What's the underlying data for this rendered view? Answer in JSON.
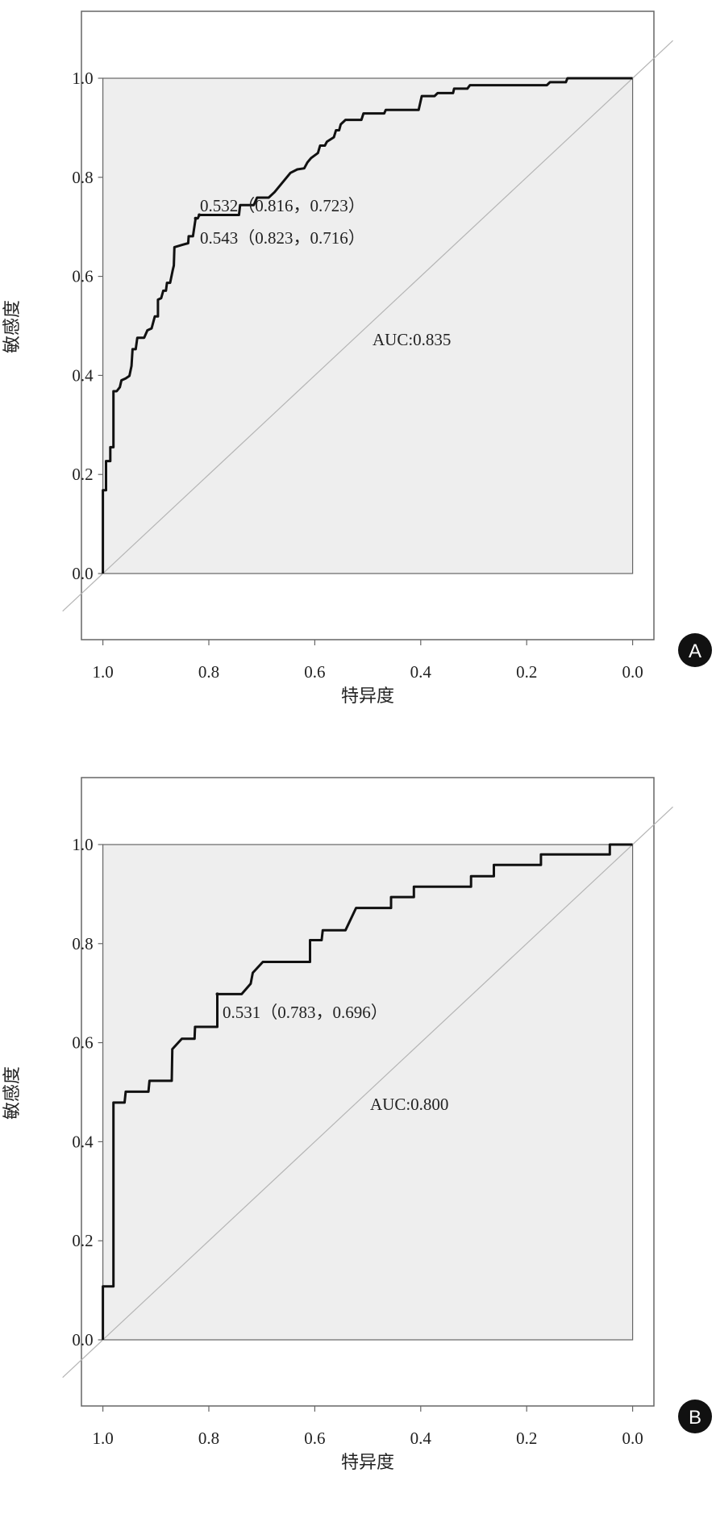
{
  "chart_data": [
    {
      "type": "line",
      "panel_label": "A",
      "xlabel": "特异度",
      "ylabel": "敏感度",
      "xlim": [
        1.0,
        0.0
      ],
      "ylim": [
        0.0,
        1.0
      ],
      "xticks": [
        "1.0",
        "0.8",
        "0.6",
        "0.4",
        "0.2",
        "0.0"
      ],
      "yticks": [
        "0.0",
        "0.2",
        "0.4",
        "0.6",
        "0.8",
        "1.0"
      ],
      "xtick_values": [
        1.0,
        0.8,
        0.6,
        0.4,
        0.2,
        0.0
      ],
      "ytick_values": [
        0.0,
        0.2,
        0.4,
        0.6,
        0.8,
        1.0
      ],
      "reference_line": "diagonal",
      "auc_label": "AUC:0.835",
      "annotations": [
        {
          "text": "0.532（0.816，0.723）",
          "spec": 0.818,
          "sens": 0.724
        },
        {
          "text": "0.543（0.823，0.716）",
          "spec": 0.825,
          "sens": 0.717
        }
      ],
      "series": [
        {
          "name": "ROC",
          "points": [
            [
              1,
              0
            ],
            [
              1,
              0.168
            ],
            [
              0.994,
              0.168
            ],
            [
              0.994,
              0.227
            ],
            [
              0.986,
              0.227
            ],
            [
              0.986,
              0.255
            ],
            [
              0.98,
              0.255
            ],
            [
              0.98,
              0.368
            ],
            [
              0.974,
              0.368
            ],
            [
              0.968,
              0.376
            ],
            [
              0.965,
              0.39
            ],
            [
              0.957,
              0.394
            ],
            [
              0.95,
              0.399
            ],
            [
              0.946,
              0.419
            ],
            [
              0.944,
              0.453
            ],
            [
              0.938,
              0.453
            ],
            [
              0.935,
              0.476
            ],
            [
              0.922,
              0.476
            ],
            [
              0.916,
              0.491
            ],
            [
              0.908,
              0.495
            ],
            [
              0.902,
              0.519
            ],
            [
              0.896,
              0.519
            ],
            [
              0.896,
              0.553
            ],
            [
              0.89,
              0.556
            ],
            [
              0.886,
              0.571
            ],
            [
              0.881,
              0.571
            ],
            [
              0.879,
              0.587
            ],
            [
              0.873,
              0.587
            ],
            [
              0.868,
              0.613
            ],
            [
              0.866,
              0.622
            ],
            [
              0.865,
              0.659
            ],
            [
              0.849,
              0.664
            ],
            [
              0.839,
              0.667
            ],
            [
              0.838,
              0.681
            ],
            [
              0.83,
              0.681
            ],
            [
              0.825,
              0.717
            ],
            [
              0.821,
              0.717
            ],
            [
              0.818,
              0.724
            ],
            [
              0.743,
              0.724
            ],
            [
              0.741,
              0.744
            ],
            [
              0.715,
              0.744
            ],
            [
              0.709,
              0.759
            ],
            [
              0.687,
              0.759
            ],
            [
              0.676,
              0.77
            ],
            [
              0.646,
              0.809
            ],
            [
              0.633,
              0.816
            ],
            [
              0.62,
              0.818
            ],
            [
              0.614,
              0.83
            ],
            [
              0.607,
              0.839
            ],
            [
              0.594,
              0.849
            ],
            [
              0.59,
              0.864
            ],
            [
              0.581,
              0.864
            ],
            [
              0.577,
              0.872
            ],
            [
              0.564,
              0.881
            ],
            [
              0.56,
              0.895
            ],
            [
              0.554,
              0.895
            ],
            [
              0.551,
              0.907
            ],
            [
              0.542,
              0.916
            ],
            [
              0.512,
              0.916
            ],
            [
              0.508,
              0.929
            ],
            [
              0.469,
              0.929
            ],
            [
              0.466,
              0.936
            ],
            [
              0.404,
              0.936
            ],
            [
              0.398,
              0.964
            ],
            [
              0.374,
              0.964
            ],
            [
              0.368,
              0.97
            ],
            [
              0.339,
              0.97
            ],
            [
              0.337,
              0.979
            ],
            [
              0.312,
              0.979
            ],
            [
              0.307,
              0.986
            ],
            [
              0.162,
              0.986
            ],
            [
              0.156,
              0.992
            ],
            [
              0.126,
              0.992
            ],
            [
              0.123,
              1
            ],
            [
              0,
              1
            ]
          ]
        }
      ]
    },
    {
      "type": "line",
      "panel_label": "B",
      "xlabel": "特异度",
      "ylabel": "敏感度",
      "xlim": [
        1.0,
        0.0
      ],
      "ylim": [
        0.0,
        1.0
      ],
      "xticks": [
        "1.0",
        "0.8",
        "0.6",
        "0.4",
        "0.2",
        "0.0"
      ],
      "yticks": [
        "0.0",
        "0.2",
        "0.4",
        "0.6",
        "0.8",
        "1.0"
      ],
      "xtick_values": [
        1.0,
        0.8,
        0.6,
        0.4,
        0.2,
        0.0
      ],
      "ytick_values": [
        0.0,
        0.2,
        0.4,
        0.6,
        0.8,
        1.0
      ],
      "reference_line": "diagonal",
      "auc_label": "AUC:0.800",
      "annotations": [
        {
          "text": "0.531（0.783，0.696）",
          "spec": 0.784,
          "sens": 0.698
        }
      ],
      "series": [
        {
          "name": "ROC",
          "points": [
            [
              1,
              0
            ],
            [
              1,
              0.108
            ],
            [
              0.98,
              0.108
            ],
            [
              0.98,
              0.479
            ],
            [
              0.959,
              0.479
            ],
            [
              0.957,
              0.501
            ],
            [
              0.914,
              0.501
            ],
            [
              0.912,
              0.523
            ],
            [
              0.87,
              0.523
            ],
            [
              0.869,
              0.587
            ],
            [
              0.851,
              0.608
            ],
            [
              0.827,
              0.608
            ],
            [
              0.826,
              0.632
            ],
            [
              0.784,
              0.632
            ],
            [
              0.784,
              0.698
            ],
            [
              0.738,
              0.698
            ],
            [
              0.721,
              0.719
            ],
            [
              0.717,
              0.741
            ],
            [
              0.698,
              0.763
            ],
            [
              0.609,
              0.763
            ],
            [
              0.609,
              0.807
            ],
            [
              0.587,
              0.807
            ],
            [
              0.585,
              0.827
            ],
            [
              0.542,
              0.827
            ],
            [
              0.522,
              0.872
            ],
            [
              0.456,
              0.872
            ],
            [
              0.456,
              0.894
            ],
            [
              0.413,
              0.894
            ],
            [
              0.413,
              0.915
            ],
            [
              0.305,
              0.915
            ],
            [
              0.305,
              0.936
            ],
            [
              0.262,
              0.936
            ],
            [
              0.262,
              0.959
            ],
            [
              0.173,
              0.959
            ],
            [
              0.173,
              0.98
            ],
            [
              0.043,
              0.98
            ],
            [
              0.043,
              1
            ],
            [
              0,
              1
            ]
          ]
        }
      ]
    }
  ],
  "colors": {
    "plot_bg": "#eeeeee",
    "curve": "#111111",
    "reference": "#b5b5b5",
    "frame": "#666666",
    "badge": "#111111"
  }
}
